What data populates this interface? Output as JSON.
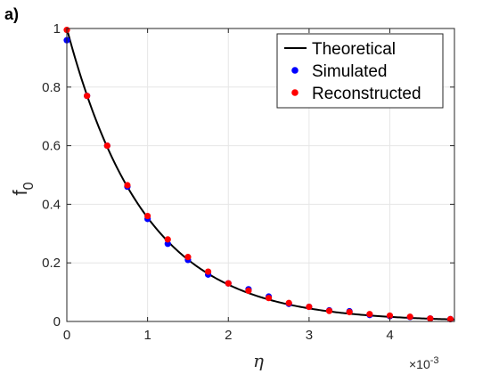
{
  "panel_label": "a)",
  "chart_data": {
    "type": "line",
    "title": "",
    "xlabel": "η",
    "ylabel": "f",
    "ylabel_subscript": "0",
    "x_exponent_label": "×10",
    "x_exponent_power": "-3",
    "xlim": [
      0,
      4.8
    ],
    "ylim": [
      0,
      1
    ],
    "x_ticks": [
      0,
      1,
      2,
      3,
      4
    ],
    "x_tick_labels": [
      "0",
      "1",
      "2",
      "3",
      "4"
    ],
    "y_ticks": [
      0,
      0.2,
      0.4,
      0.6,
      0.8,
      1
    ],
    "y_tick_labels": [
      "0",
      "0.2",
      "0.4",
      "0.6",
      "0.8",
      "1"
    ],
    "grid": true,
    "legend_position": "top-right",
    "colors": {
      "theoretical": "#000000",
      "simulated": "#0000ff",
      "reconstructed": "#ff0000",
      "grid": "#e6e6e6",
      "axis": "#262626"
    },
    "series": [
      {
        "name": "Theoretical",
        "kind": "line",
        "decay_rate": 1.037,
        "x_range": [
          0,
          4.8
        ]
      },
      {
        "name": "Simulated",
        "kind": "scatter",
        "x": [
          0,
          0.25,
          0.5,
          0.75,
          1.0,
          1.25,
          1.5,
          1.75,
          2.0,
          2.25,
          2.5,
          2.75,
          3.0,
          3.25,
          3.5,
          3.75,
          4.0,
          4.25,
          4.5,
          4.75
        ],
        "y": [
          0.96,
          0.77,
          0.6,
          0.46,
          0.35,
          0.265,
          0.21,
          0.16,
          0.13,
          0.11,
          0.085,
          0.06,
          0.05,
          0.038,
          0.035,
          0.022,
          0.018,
          0.015,
          0.01,
          0.008
        ]
      },
      {
        "name": "Reconstructed",
        "kind": "scatter",
        "x": [
          0,
          0.25,
          0.5,
          0.75,
          1.0,
          1.25,
          1.5,
          1.75,
          2.0,
          2.25,
          2.5,
          2.75,
          3.0,
          3.25,
          3.5,
          3.75,
          4.0,
          4.25,
          4.5,
          4.75
        ],
        "y": [
          0.995,
          0.77,
          0.6,
          0.465,
          0.36,
          0.28,
          0.22,
          0.17,
          0.13,
          0.105,
          0.08,
          0.063,
          0.05,
          0.036,
          0.032,
          0.025,
          0.02,
          0.016,
          0.01,
          0.008
        ]
      }
    ]
  }
}
